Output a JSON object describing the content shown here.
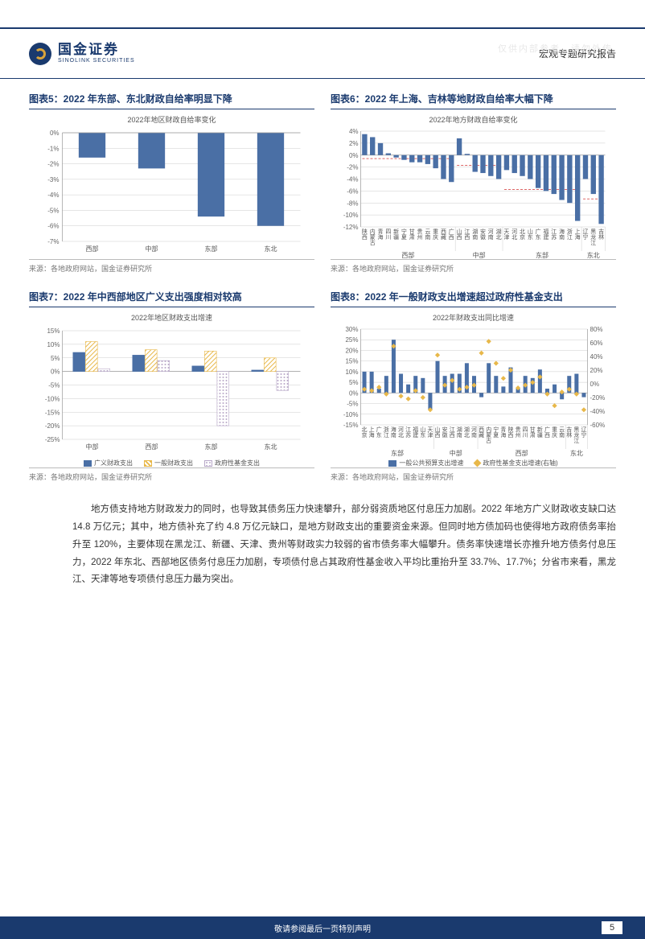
{
  "watermark": "仅供内部参考，请勿外传",
  "logo": {
    "cn": "国金证券",
    "en": "SINOLINK SECURITIES"
  },
  "doc_type": "宏观专题研究报告",
  "footer_text": "敬请参阅最后一页特别声明",
  "page_number": "5",
  "colors": {
    "brand": "#1a3a6e",
    "bar_blue": "#4a6fa5",
    "bar_yellow": "#e8b84a",
    "bar_pattern": "#b8a8c8",
    "marker_yellow": "#e8b84a",
    "dashed_red": "#d66"
  },
  "source_text": "来源：各地政府网站，国金证券研究所",
  "chart5": {
    "title": "图表5：2022 年东部、东北财政自给率明显下降",
    "subtitle": "2022年地区财政自给率变化",
    "categories": [
      "西部",
      "中部",
      "东部",
      "东北"
    ],
    "values": [
      -1.6,
      -2.3,
      -5.4,
      -6.0
    ],
    "ylim": [
      -7,
      0
    ],
    "ytick_step": 1,
    "bar_color": "#4a6fa5"
  },
  "chart6": {
    "title": "图表6：2022 年上海、吉林等地财政自给率大幅下降",
    "subtitle": "2022年地方财政自给率变化",
    "groups": [
      {
        "name": "西部",
        "items": [
          {
            "l": "陕西",
            "v": 3.5
          },
          {
            "l": "内蒙古",
            "v": 3.0
          },
          {
            "l": "青海",
            "v": 2.0
          },
          {
            "l": "四川",
            "v": 0.3
          },
          {
            "l": "新疆",
            "v": -0.4
          },
          {
            "l": "宁夏",
            "v": -0.8
          },
          {
            "l": "甘肃",
            "v": -1.2
          },
          {
            "l": "贵州",
            "v": -1.2
          },
          {
            "l": "云南",
            "v": -1.5
          },
          {
            "l": "重庆",
            "v": -2.2
          },
          {
            "l": "西藏",
            "v": -4.0
          },
          {
            "l": "广西",
            "v": -4.5
          }
        ]
      },
      {
        "name": "中部",
        "items": [
          {
            "l": "山西",
            "v": 2.8
          },
          {
            "l": "江西",
            "v": 0.2
          },
          {
            "l": "湖南",
            "v": -2.8
          },
          {
            "l": "安徽",
            "v": -3.0
          },
          {
            "l": "河南",
            "v": -3.5
          },
          {
            "l": "湖北",
            "v": -4.0
          }
        ]
      },
      {
        "name": "东部",
        "items": [
          {
            "l": "天津",
            "v": -2.5
          },
          {
            "l": "河北",
            "v": -3.0
          },
          {
            "l": "北京",
            "v": -3.5
          },
          {
            "l": "山东",
            "v": -4.0
          },
          {
            "l": "广东",
            "v": -5.5
          },
          {
            "l": "福建",
            "v": -6.0
          },
          {
            "l": "江苏",
            "v": -6.5
          },
          {
            "l": "海南",
            "v": -7.5
          },
          {
            "l": "浙江",
            "v": -8.0
          },
          {
            "l": "上海",
            "v": -11.0
          }
        ]
      },
      {
        "name": "东北",
        "items": [
          {
            "l": "辽宁",
            "v": -4.0
          },
          {
            "l": "黑龙江",
            "v": -6.5
          },
          {
            "l": "吉林",
            "v": -11.5
          }
        ]
      }
    ],
    "ylim": [
      -12,
      4
    ],
    "ytick_step": 2,
    "bar_color": "#4a6fa5",
    "avg_line_color": "#d66"
  },
  "chart7": {
    "title": "图表7：2022 年中西部地区广义支出强度相对较高",
    "subtitle": "2022年地区财政支出增速",
    "categories": [
      "中部",
      "西部",
      "东部",
      "东北"
    ],
    "series": [
      {
        "name": "广义财政支出",
        "color": "#4a6fa5",
        "fill": "solid",
        "values": [
          7,
          6,
          2,
          0.5
        ]
      },
      {
        "name": "一般财政支出",
        "color": "#e8b84a",
        "fill": "hatch",
        "values": [
          11,
          8,
          7.5,
          5
        ]
      },
      {
        "name": "政府性基金支出",
        "color": "#b8a8c8",
        "fill": "dots",
        "values": [
          1,
          4,
          -20,
          -7
        ]
      }
    ],
    "ylim": [
      -25,
      15
    ],
    "ytick_step": 5
  },
  "chart8": {
    "title": "图表8：2022 年一般财政支出增速超过政府性基金支出",
    "subtitle": "2022年财政支出同比增速",
    "left_ylim": [
      -15,
      30
    ],
    "left_step": 5,
    "right_ylim": [
      -60,
      80
    ],
    "right_step": 20,
    "bar_color": "#4a6fa5",
    "marker_color": "#e8b84a",
    "legend": [
      "一般公共预算支出增速",
      "政府性基金支出增速(右轴)"
    ],
    "groups": [
      {
        "name": "东部",
        "items": [
          {
            "l": "北京",
            "a": 10,
            "b": -8
          },
          {
            "l": "上海",
            "a": 10,
            "b": -10
          },
          {
            "l": "广东",
            "a": 2,
            "b": -5
          },
          {
            "l": "浙江",
            "a": 8,
            "b": -15
          },
          {
            "l": "海南",
            "a": 25,
            "b": 55
          },
          {
            "l": "河北",
            "a": 9,
            "b": -18
          },
          {
            "l": "江苏",
            "a": 4,
            "b": -22
          },
          {
            "l": "福建",
            "a": 8,
            "b": -10
          },
          {
            "l": "山东",
            "a": 7,
            "b": -20
          },
          {
            "l": "天津",
            "a": -8,
            "b": -38
          }
        ]
      },
      {
        "name": "中部",
        "items": [
          {
            "l": "山西",
            "a": 15,
            "b": 42
          },
          {
            "l": "安徽",
            "a": 8,
            "b": -2
          },
          {
            "l": "江西",
            "a": 9,
            "b": 5
          },
          {
            "l": "湖南",
            "a": 9,
            "b": -8
          },
          {
            "l": "湖北",
            "a": 14,
            "b": -5
          },
          {
            "l": "河南",
            "a": 8,
            "b": -2
          }
        ]
      },
      {
        "name": "西部",
        "items": [
          {
            "l": "西藏",
            "a": -2,
            "b": 45
          },
          {
            "l": "内蒙古",
            "a": 14,
            "b": 62
          },
          {
            "l": "宁夏",
            "a": 8,
            "b": 30
          },
          {
            "l": "青海",
            "a": 3,
            "b": 8
          },
          {
            "l": "陕西",
            "a": 12,
            "b": 20
          },
          {
            "l": "贵州",
            "a": 2,
            "b": -6
          },
          {
            "l": "四川",
            "a": 8,
            "b": -2
          },
          {
            "l": "甘肃",
            "a": 7,
            "b": 2
          },
          {
            "l": "新疆",
            "a": 11,
            "b": 10
          },
          {
            "l": "广西",
            "a": 2,
            "b": -15
          },
          {
            "l": "重庆",
            "a": 4,
            "b": -32
          },
          {
            "l": "云南",
            "a": -3,
            "b": -12
          }
        ]
      },
      {
        "name": "东北",
        "items": [
          {
            "l": "吉林",
            "a": 8,
            "b": -8
          },
          {
            "l": "黑龙江",
            "a": 9,
            "b": -15
          },
          {
            "l": "辽宁",
            "a": -2,
            "b": -38
          }
        ]
      }
    ]
  },
  "body_text": "地方债支持地方财政发力的同时，也导致其债务压力快速攀升，部分弱资质地区付息压力加剧。2022 年地方广义财政收支缺口达 14.8 万亿元；其中，地方债补充了约 4.8 万亿元缺口，是地方财政支出的重要资金来源。但同时地方债加码也使得地方政府债务率抬升至 120%，主要体现在黑龙江、新疆、天津、贵州等财政实力较弱的省市债务率大幅攀升。债务率快速增长亦推升地方债务付息压力，2022 年东北、西部地区债务付息压力加剧，专项债付息占其政府性基金收入平均比重抬升至 33.7%、17.7%；分省市来看，黑龙江、天津等地专项债付息压力最为突出。"
}
